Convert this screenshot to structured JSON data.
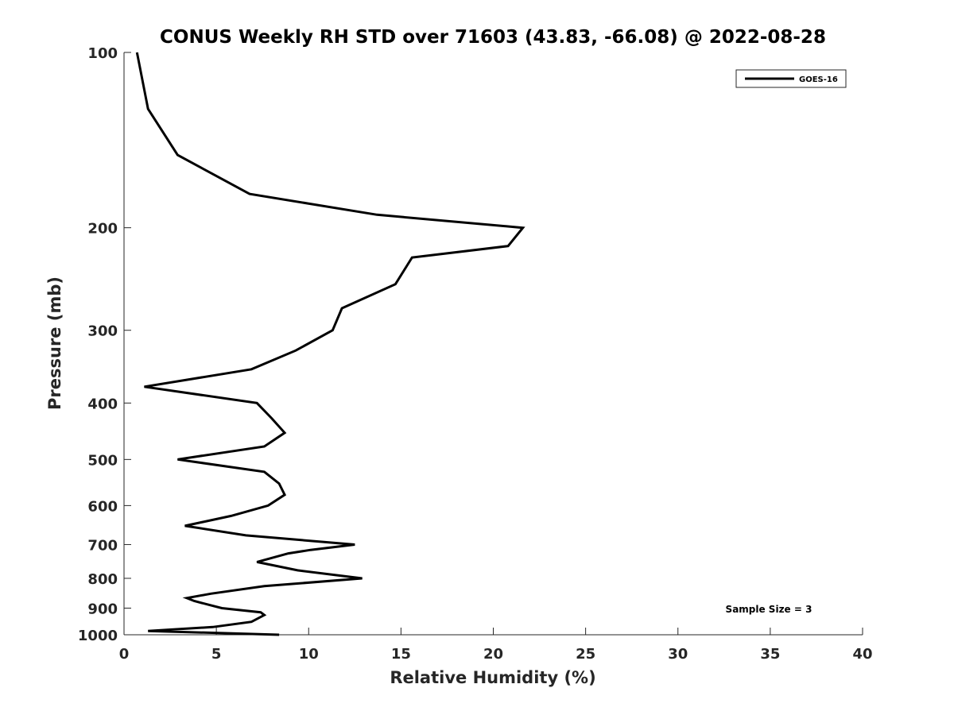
{
  "chart_data": {
    "type": "line",
    "title": "CONUS Weekly RH STD over 71603 (43.83, -66.08) @ 2022-08-28",
    "xlabel": "Relative Humidity (%)",
    "ylabel": "Pressure (mb)",
    "xlim": [
      0,
      40
    ],
    "ylim": [
      100,
      1000
    ],
    "yscale": "log",
    "yreversed": true,
    "grid": false,
    "legend_position": "top-right",
    "xticks": [
      0,
      5,
      10,
      15,
      20,
      25,
      30,
      35,
      40
    ],
    "xtick_labels": [
      "0",
      "5",
      "10",
      "15",
      "20",
      "25",
      "30",
      "35",
      "40"
    ],
    "yticks": [
      100,
      200,
      300,
      400,
      500,
      600,
      700,
      800,
      900,
      1000
    ],
    "ytick_labels": [
      "100",
      "200",
      "300",
      "400",
      "500",
      "600",
      "700",
      "800",
      "900",
      "1000"
    ],
    "series": [
      {
        "name": "GOES-16",
        "color": "#000000",
        "x": [
          0.7,
          1.3,
          2.9,
          6.8,
          13.7,
          21.6,
          20.8,
          15.6,
          14.7,
          11.8,
          11.3,
          9.3,
          6.9,
          1.1,
          7.2,
          8.0,
          8.7,
          7.6,
          2.9,
          7.6,
          8.4,
          8.7,
          7.8,
          5.8,
          3.3,
          6.6,
          12.5,
          10.1,
          8.9,
          7.2,
          9.4,
          12.9,
          7.6,
          4.7,
          3.4,
          3.8,
          5.3,
          7.4,
          7.6,
          6.9,
          4.8,
          1.3,
          8.4
        ],
        "y": [
          100,
          125,
          150,
          175,
          190,
          200,
          215,
          225,
          250,
          275,
          300,
          325,
          350,
          375,
          400,
          425,
          450,
          475,
          500,
          525,
          550,
          575,
          600,
          625,
          650,
          675,
          700,
          715,
          725,
          750,
          775,
          800,
          825,
          850,
          865,
          875,
          900,
          915,
          925,
          950,
          970,
          985,
          1000
        ]
      }
    ],
    "annotations": [
      "Sample Size = 3"
    ]
  }
}
